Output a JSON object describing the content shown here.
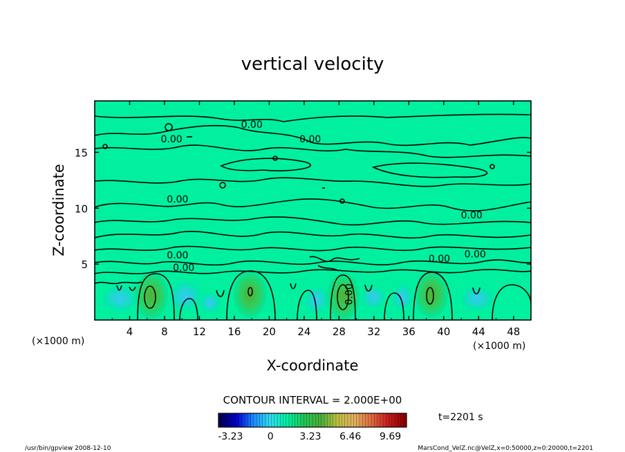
{
  "chart_data": {
    "type": "contour",
    "title": "vertical velocity",
    "xlabel": "X-coordinate",
    "ylabel": "Z-coordinate",
    "x_unit_left": "(×1000 m)",
    "x_unit_right": "(×1000 m)",
    "xlim": [
      0,
      50
    ],
    "ylim": [
      0,
      19.6
    ],
    "x_ticks": [
      4,
      8,
      12,
      16,
      20,
      24,
      28,
      32,
      36,
      40,
      44,
      48
    ],
    "y_ticks": [
      5,
      10,
      15
    ],
    "contour_interval_text": "CONTOUR INTERVAL = 2.000E+00",
    "contour_labels": [
      {
        "text": "0.00",
        "x": 18,
        "z": 17.2
      },
      {
        "text": "0.00",
        "x": 8.8,
        "z": 15.9
      },
      {
        "text": "0.00",
        "x": 24.7,
        "z": 15.9
      },
      {
        "text": "0.00",
        "x": 9.5,
        "z": 10.5
      },
      {
        "text": "0.00",
        "x": 43.2,
        "z": 9.1
      },
      {
        "text": "0.00",
        "x": 9.5,
        "z": 5.5
      },
      {
        "text": "0.00",
        "x": 10.2,
        "z": 4.4
      },
      {
        "text": "0.00",
        "x": 39.5,
        "z": 5.2
      },
      {
        "text": "0.00",
        "x": 43.6,
        "z": 5.6
      },
      {
        "text": "0.00",
        "x": 29.5,
        "z": 2.3
      }
    ],
    "updraft_cores": [
      {
        "x": 6.5,
        "z": 2.2
      },
      {
        "x": 17.8,
        "z": 2.3
      },
      {
        "x": 28.5,
        "z": 2.1
      },
      {
        "x": 38.6,
        "z": 2.3
      }
    ],
    "colorbar": {
      "min": -4.2,
      "max": 11,
      "labels": [
        "-3.23",
        "0",
        "3.23",
        "6.46",
        "9.69"
      ],
      "label_values": [
        -3.23,
        0,
        3.23,
        6.46,
        9.69
      ],
      "colors": [
        "#000050",
        "#0000d0",
        "#1a8cff",
        "#33ddee",
        "#00f0a0",
        "#22c655",
        "#4caf3a",
        "#c0c040",
        "#e0b060",
        "#e06a40",
        "#c81e1e",
        "#8c0000"
      ]
    },
    "background_color": "#00f0a0",
    "time_label": "t=2201 s"
  },
  "footer": {
    "left": "/usr/bin/gpview  2008-12-10",
    "right": "MarsCond_VelZ.nc@VelZ,x=0:50000,z=0:20000,t=2201"
  }
}
